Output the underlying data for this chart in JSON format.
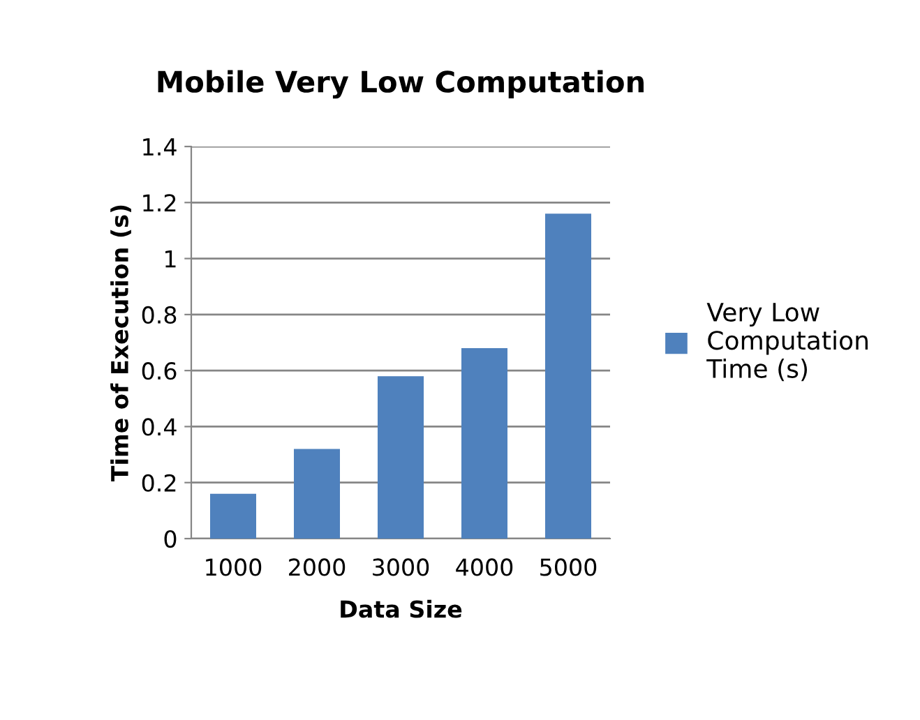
{
  "chart_data": {
    "type": "bar",
    "title": "Mobile Very Low Computation",
    "xlabel": "Data Size",
    "ylabel": "Time of Execution (s)",
    "categories": [
      "1000",
      "2000",
      "3000",
      "4000",
      "5000"
    ],
    "series": [
      {
        "name": "Very Low Computation Time (s)",
        "color": "#4f81bd",
        "values": [
          0.16,
          0.32,
          0.58,
          0.68,
          1.16
        ]
      }
    ],
    "ylim": [
      0,
      1.4
    ],
    "yticks": [
      0,
      0.2,
      0.4,
      0.6,
      0.8,
      1,
      1.2,
      1.4
    ],
    "grid": "y",
    "legend": "right"
  }
}
